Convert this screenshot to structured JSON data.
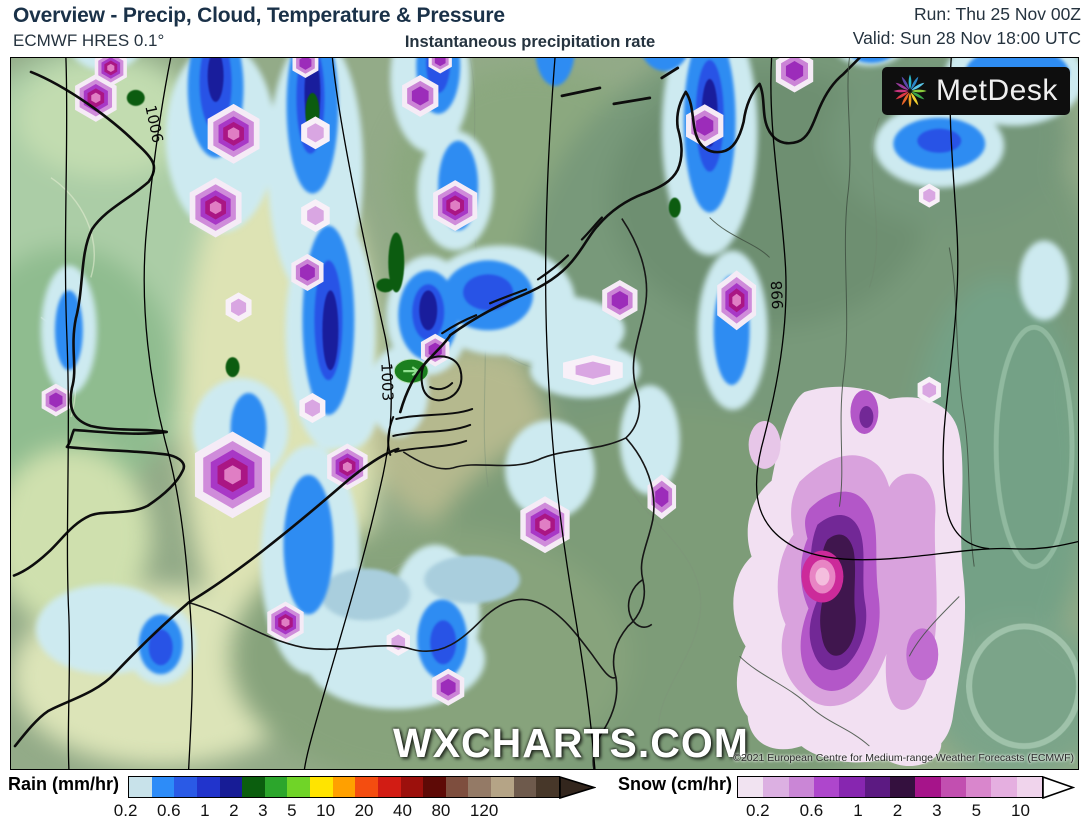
{
  "header": {
    "title": "Overview - Precip, Cloud, Temperature & Pressure",
    "model": "ECMWF HRES 0.1°",
    "subtitle": "Instantaneous precipitation rate",
    "run": "Run: Thu 25 Nov 00Z",
    "valid": "Valid: Sun 28 Nov 18:00 UTC",
    "text_color": "#1a3148"
  },
  "map": {
    "watermark": "WXCHARTS.COM",
    "copyright": "©2021 European Centre for Medium-range Weather Forecasts (ECMWF)",
    "logo_text": "MetDesk",
    "isobar_labels": [
      "1006",
      "1003",
      "998"
    ]
  },
  "legend": {
    "rain": {
      "label": "Rain (mm/hr)",
      "ticks": [
        "0.2",
        "0.6",
        "1",
        "2",
        "3",
        "5",
        "10",
        "20",
        "40",
        "80",
        "120"
      ],
      "colors": [
        "#c8e2ea",
        "#2d8cf8",
        "#2a5ae6",
        "#2134cc",
        "#171c96",
        "#0b5e0e",
        "#2ca62c",
        "#70d428",
        "#ffe400",
        "#ffa000",
        "#f44d10",
        "#d21c14",
        "#9c100c",
        "#5e0a06",
        "#7e4e3e",
        "#947a66",
        "#b5a486",
        "#6e5a4c",
        "#473729"
      ],
      "arrow_color": "#33261d"
    },
    "snow": {
      "label": "Snow (cm/hr)",
      "ticks": [
        "0.2",
        "0.6",
        "1",
        "2",
        "3",
        "5",
        "10"
      ],
      "colors": [
        "#f1e3f1",
        "#dcb0e2",
        "#ca86d6",
        "#ae46cc",
        "#8726b0",
        "#5c1a82",
        "#34103e",
        "#a6148a",
        "#c24fb0",
        "#d986cc",
        "#e5afe0",
        "#f0d4ec"
      ],
      "arrow_color": "#ffffff"
    }
  }
}
